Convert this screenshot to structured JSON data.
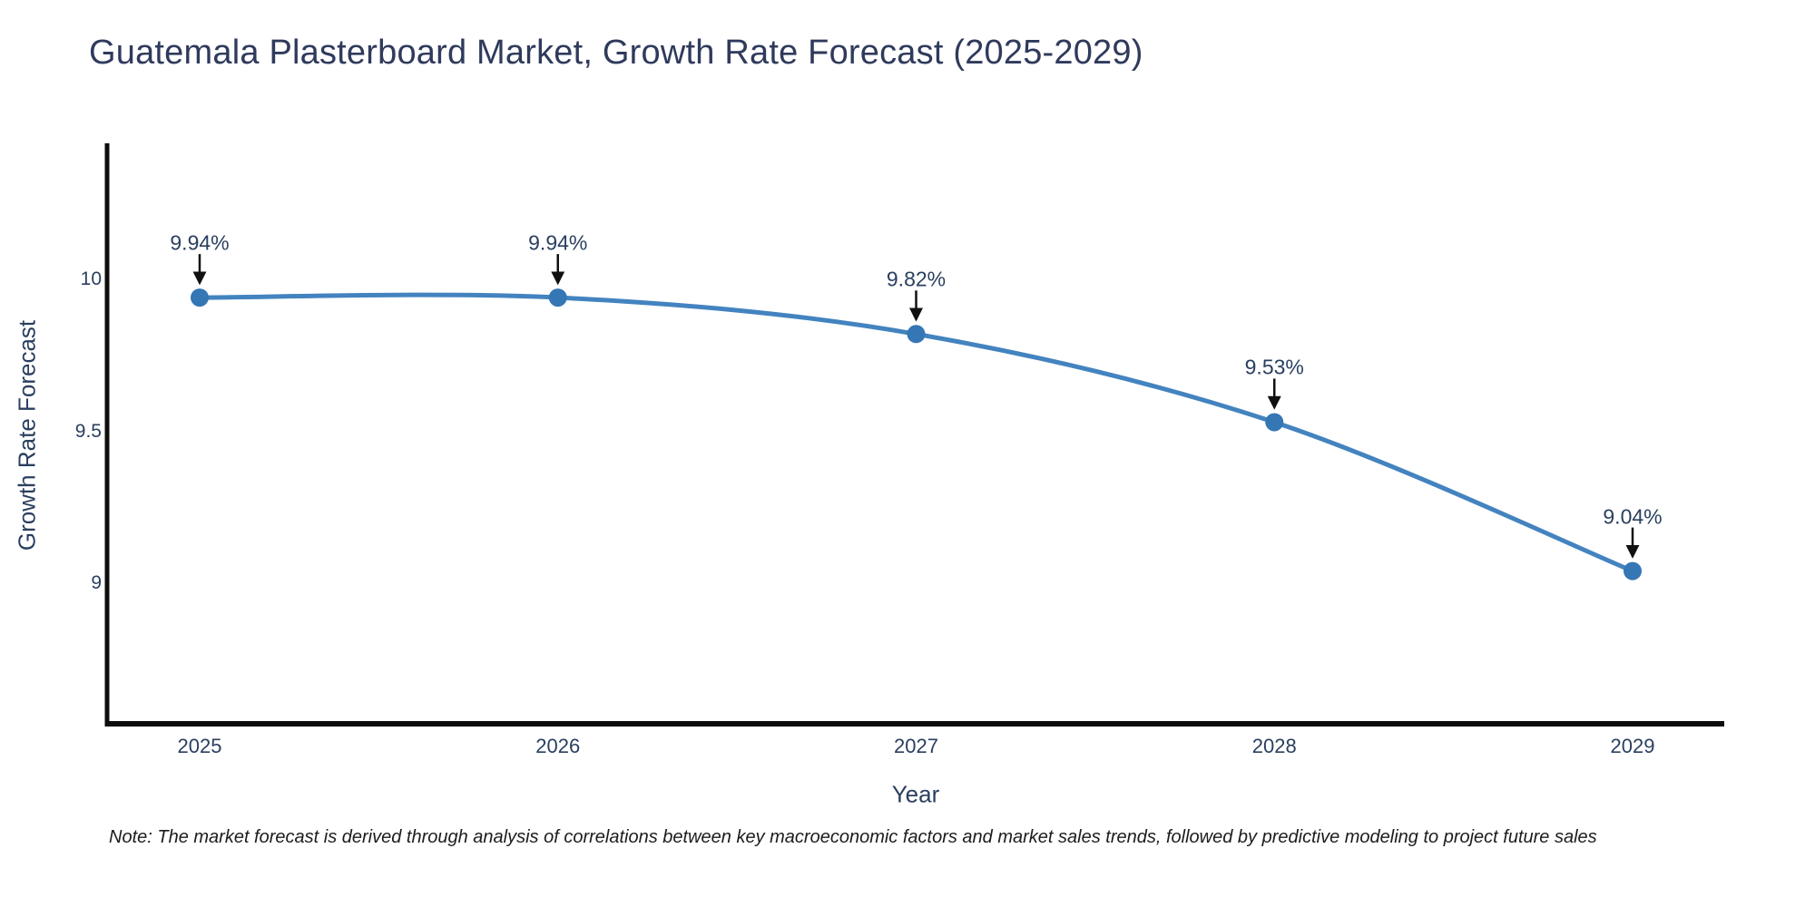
{
  "chart_data": {
    "type": "line",
    "title": "Guatemala Plasterboard Market, Growth Rate Forecast (2025-2029)",
    "xlabel": "Year",
    "ylabel": "Growth Rate Forecast",
    "x": [
      2025,
      2026,
      2027,
      2028,
      2029
    ],
    "values": [
      9.94,
      9.94,
      9.82,
      9.53,
      9.04
    ],
    "point_labels": [
      "9.94%",
      "9.94%",
      "9.82%",
      "9.53%",
      "9.04%"
    ],
    "x_tick_labels": [
      "2025",
      "2026",
      "2027",
      "2028",
      "2029"
    ],
    "y_tick_labels": [
      "10",
      "9.5",
      "9"
    ],
    "y_ticks": [
      10,
      9.5,
      9
    ],
    "ylim": [
      8.55,
      10.44
    ],
    "xlim": [
      2024.74,
      2029.26
    ],
    "grid": false,
    "legend": "none",
    "line_shape": "spline",
    "line_color": "#4383bf",
    "marker_color": "#3576b5",
    "axis_color": "#0d0d0d",
    "annotation_arrow_color": "#111111",
    "text_color": "#2a3f5f"
  },
  "note": "Note: The market forecast is derived through analysis of correlations between key macroeconomic factors and market sales trends, followed by predictive modeling to project future sales"
}
